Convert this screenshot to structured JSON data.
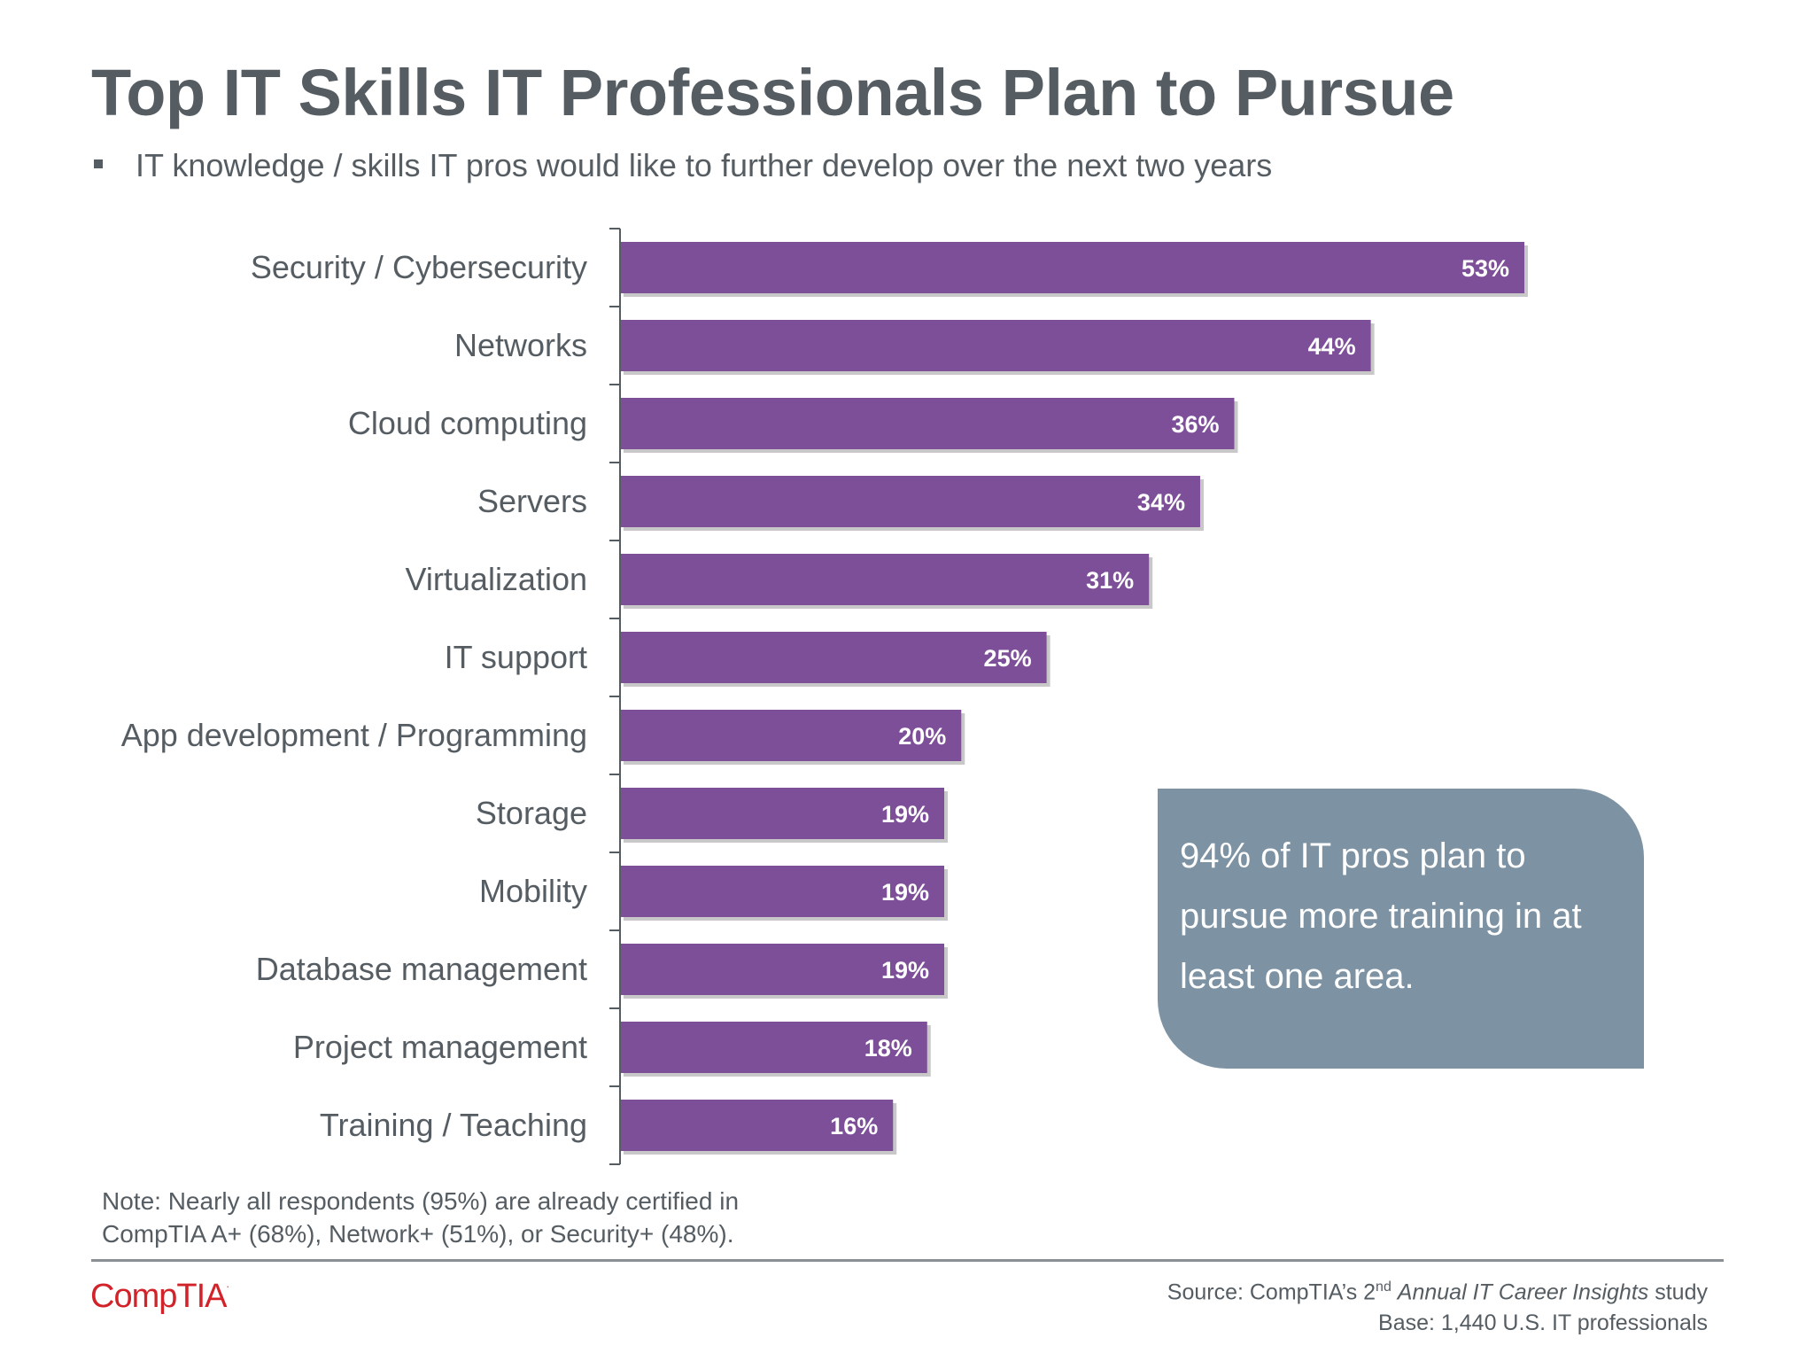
{
  "title": "Top IT Skills IT Professionals Plan to Pursue",
  "subtitle": "IT knowledge / skills IT pros would like to further develop over the next two years",
  "chart_data": {
    "type": "bar",
    "orientation": "horizontal",
    "categories": [
      "Security / Cybersecurity",
      "Networks",
      "Cloud computing",
      "Servers",
      "Virtualization",
      "IT support",
      "App development / Programming",
      "Storage",
      "Mobility",
      "Database management",
      "Project management",
      "Training / Teaching"
    ],
    "values": [
      53,
      44,
      36,
      34,
      31,
      25,
      20,
      19,
      19,
      19,
      18,
      16
    ],
    "value_labels": [
      "53%",
      "44%",
      "36%",
      "34%",
      "31%",
      "25%",
      "20%",
      "19%",
      "19%",
      "19%",
      "18%",
      "16%"
    ],
    "xlim": [
      0,
      100
    ],
    "bar_color": "#7e4f99",
    "grid": false,
    "legend": "none"
  },
  "callout": {
    "text": "94% of IT pros plan to pursue more training in at least one area.",
    "color": "#7d92a3"
  },
  "note": {
    "line1": "Note: Nearly all respondents (95%) are already certified in",
    "line2": "CompTIA A+ (68%), Network+ (51%), or Security+ (48%)."
  },
  "footer": {
    "logo_text": "CompTIA",
    "logo_mark": ".",
    "logo_color": "#d2232a",
    "source_prefix": "Source: CompTIA’s 2",
    "source_superscript": "nd",
    "source_italic": "Annual IT Career Insights",
    "source_suffix": "study",
    "base": "Base: 1,440 U.S. IT professionals"
  }
}
